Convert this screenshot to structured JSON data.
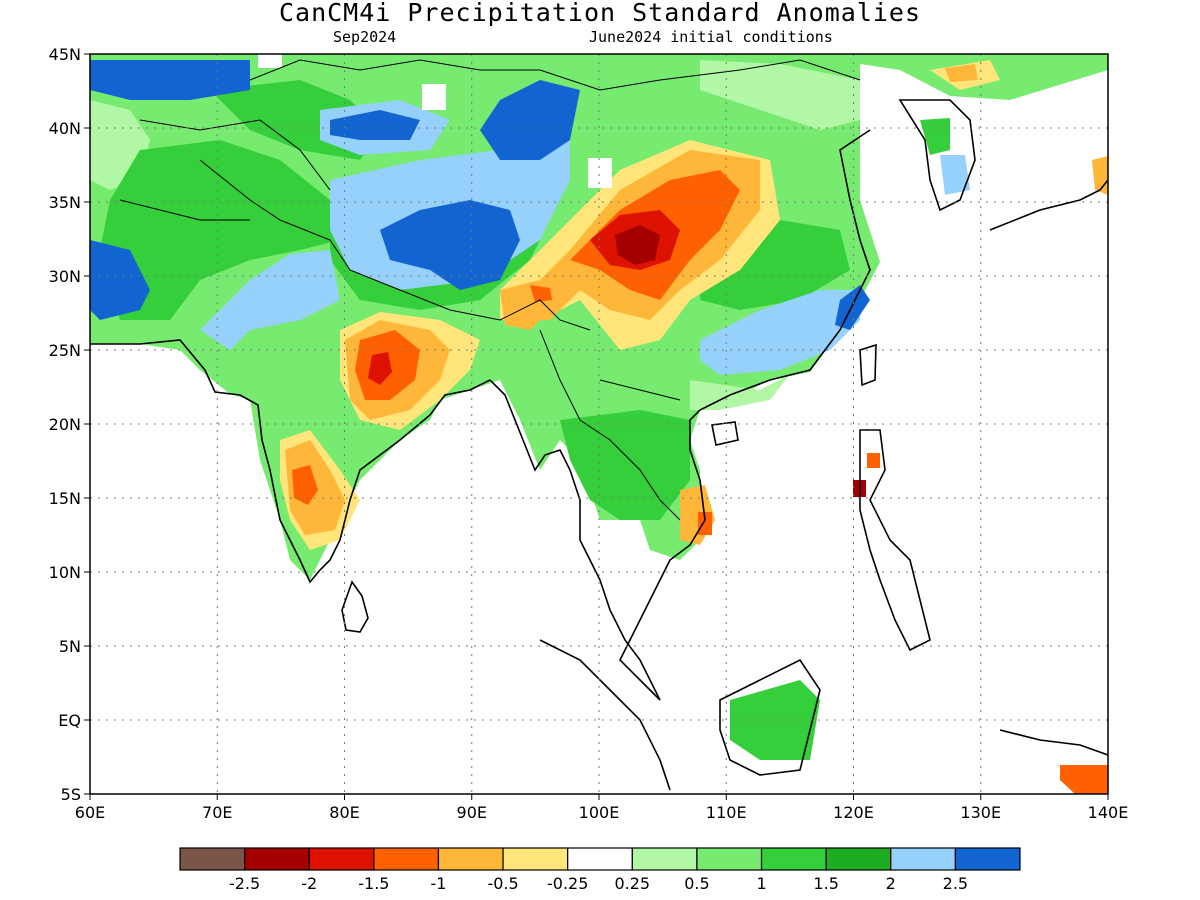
{
  "header": {
    "title": "CanCM4i Precipitation Standard Anomalies",
    "valid": "Sep2024",
    "init": "June2024 initial conditions"
  },
  "map": {
    "lon_range": [
      60,
      140
    ],
    "lat_range": [
      -5,
      45
    ],
    "lon_ticks": [
      {
        "value": 60,
        "label": "60E"
      },
      {
        "value": 70,
        "label": "70E"
      },
      {
        "value": 80,
        "label": "80E"
      },
      {
        "value": 90,
        "label": "90E"
      },
      {
        "value": 100,
        "label": "100E"
      },
      {
        "value": 110,
        "label": "110E"
      },
      {
        "value": 120,
        "label": "120E"
      },
      {
        "value": 130,
        "label": "130E"
      },
      {
        "value": 140,
        "label": "140E"
      }
    ],
    "lat_ticks": [
      {
        "value": 45,
        "label": "45N"
      },
      {
        "value": 40,
        "label": "40N"
      },
      {
        "value": 35,
        "label": "35N"
      },
      {
        "value": 30,
        "label": "30N"
      },
      {
        "value": 25,
        "label": "25N"
      },
      {
        "value": 20,
        "label": "20N"
      },
      {
        "value": 15,
        "label": "15N"
      },
      {
        "value": 10,
        "label": "10N"
      },
      {
        "value": 5,
        "label": "5N"
      },
      {
        "value": 0,
        "label": "EQ"
      },
      {
        "value": -5,
        "label": "5S"
      }
    ],
    "grid": "dotted"
  },
  "colorbar": {
    "colors": [
      "#7a5548",
      "#a50000",
      "#dd1200",
      "#ff6100",
      "#ffb739",
      "#ffe57a",
      "#ffffff",
      "#b2f7a6",
      "#77ea70",
      "#34cf3a",
      "#1eac23",
      "#95d1fa",
      "#1264d0"
    ],
    "labels": [
      "-2.5",
      "-2",
      "-1.5",
      "-1",
      "-0.5",
      "-0.25",
      "0.25",
      "0.5",
      "1",
      "1.5",
      "2",
      "2.5"
    ]
  }
}
